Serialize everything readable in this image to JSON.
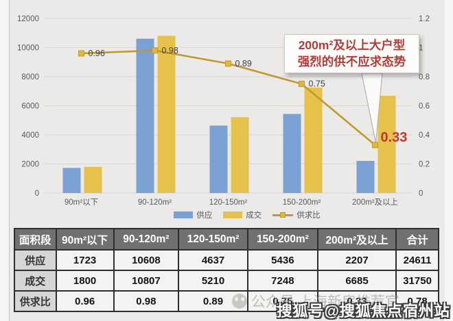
{
  "chart_data": {
    "type": "bar",
    "subtype": "bar+line-combo",
    "categories": [
      "90m²以下",
      "90-120m²",
      "120-150m²",
      "150-200m²",
      "200m²及以上"
    ],
    "series": [
      {
        "name": "供应",
        "type": "bar",
        "axis": "left",
        "color": "#7aa0d4",
        "values": [
          1723,
          10608,
          4637,
          5436,
          2207
        ]
      },
      {
        "name": "成交",
        "type": "bar",
        "axis": "left",
        "color": "#e6c14c",
        "values": [
          1800,
          10807,
          5210,
          7248,
          6685
        ]
      },
      {
        "name": "供求比",
        "type": "line",
        "axis": "right",
        "color": "#c0992b",
        "marker_fill": "#e0b83e",
        "values": [
          0.96,
          0.98,
          0.89,
          0.75,
          0.33
        ],
        "point_labels": [
          "0.96",
          "0.98",
          "0.89",
          "0.75",
          "0.33"
        ]
      }
    ],
    "left_axis": {
      "min": 0,
      "max": 12000,
      "step": 2000,
      "ticks": [
        "0",
        "2000",
        "4000",
        "6000",
        "8000",
        "10000",
        "12000"
      ]
    },
    "right_axis": {
      "min": 0,
      "max": 1.2,
      "step": 0.2,
      "ticks": [
        "0",
        "0.2",
        "0.4",
        "0.6",
        "0.8",
        "1",
        "1.2"
      ]
    },
    "grid": true,
    "grid_color": "#d8d6d3",
    "background": "#ebeae8",
    "axis_label_color": "#595959",
    "point_label_color": "#3f3f3f",
    "legend_position": "bottom",
    "highlight_point": {
      "index": 4,
      "label": "0.33",
      "color": "#c2372c"
    }
  },
  "annotation": {
    "line1": "200m²及以上大户型",
    "line2": "强烈的供不应求态势",
    "color": "#b23b38"
  },
  "legend": {
    "items": [
      {
        "label": "供应"
      },
      {
        "label": "成交"
      },
      {
        "label": "供求比"
      }
    ]
  },
  "table": {
    "headers": [
      "面积段",
      "90m²以下",
      "90-120m²",
      "120-150m²",
      "150-200m²",
      "200m²及以上",
      "合计"
    ],
    "rows": [
      {
        "label": "供应",
        "values": [
          "1723",
          "10608",
          "4637",
          "5436",
          "2207",
          "24611"
        ]
      },
      {
        "label": "成交",
        "values": [
          "1800",
          "10807",
          "5210",
          "7248",
          "6685",
          "31750"
        ]
      },
      {
        "label": "供求比",
        "values": [
          "0.96",
          "0.98",
          "0.89",
          "0.75",
          "0.33",
          "0.78"
        ]
      }
    ]
  },
  "watermarks": {
    "secondary": "公众号 上海新房推荐官",
    "primary": "搜狐号@搜狐焦点宿州站"
  }
}
